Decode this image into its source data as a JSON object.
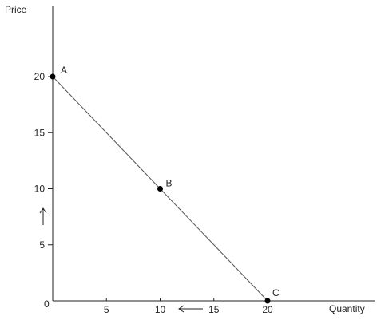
{
  "chart_data": {
    "type": "line",
    "xlabel": "Quantity",
    "ylabel": "Price",
    "origin_label": "0",
    "xlim": [
      0,
      20
    ],
    "ylim": [
      0,
      20
    ],
    "x_ticks": [
      5,
      10,
      15,
      20
    ],
    "y_ticks": [
      5,
      10,
      15,
      20
    ],
    "grid": false,
    "series": [
      {
        "x": [
          0,
          10,
          20
        ],
        "y": [
          20,
          10,
          0
        ]
      }
    ],
    "points": [
      {
        "label": "A",
        "x": 0,
        "y": 20
      },
      {
        "label": "B",
        "x": 10,
        "y": 10
      },
      {
        "label": "C",
        "x": 20,
        "y": 0
      }
    ],
    "annotations": [
      {
        "type": "arrow",
        "direction": "left",
        "near": "x-axis between 10 and 15"
      },
      {
        "type": "arrow",
        "direction": "up",
        "near": "y-axis between 5 and 10"
      }
    ],
    "colors": {
      "line": "#555555",
      "axis": "#222222",
      "point": "#000000"
    }
  }
}
